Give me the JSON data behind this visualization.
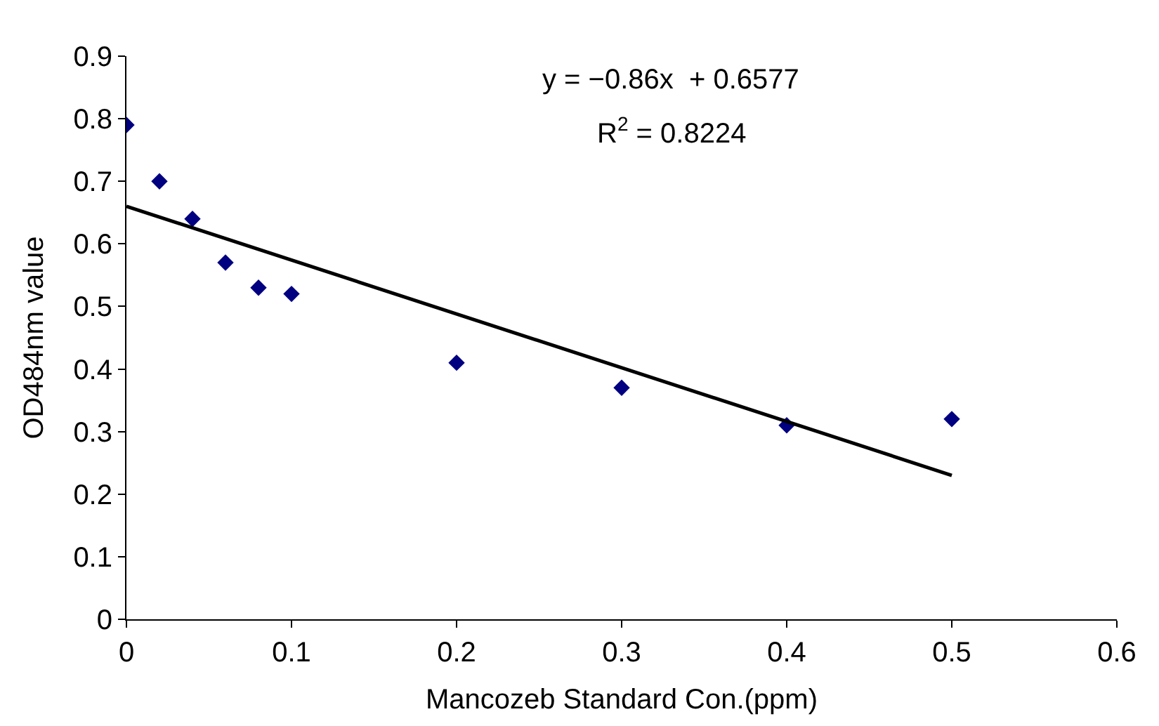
{
  "chart_data": {
    "type": "scatter",
    "xlabel": "Mancozeb Standard Con.(ppm)",
    "ylabel": "OD484nm value",
    "x": [
      0,
      0.02,
      0.04,
      0.06,
      0.08,
      0.1,
      0.2,
      0.3,
      0.4,
      0.5
    ],
    "series": [
      {
        "color": "#000080",
        "marker": "diamond",
        "values": [
          0.79,
          0.7,
          0.64,
          0.57,
          0.53,
          0.52,
          0.41,
          0.37,
          0.31,
          0.32
        ]
      },
      {
        "type": "line",
        "color": "#000000",
        "x": [
          0,
          0.5
        ],
        "values": [
          0.66,
          0.23
        ],
        "marker": "none",
        "line_style": "solid"
      }
    ],
    "annotations": [
      "y = −0.86x  + 0.6577",
      "R$^{2}$ = 0.8224"
    ],
    "xlim": [
      0,
      0.6
    ],
    "xticks": [
      0,
      0.1,
      0.2,
      0.3,
      0.4,
      0.5,
      0.6
    ],
    "ylim": [
      0,
      0.9
    ],
    "yticks": [
      0,
      0.1,
      0.2,
      0.3,
      0.4,
      0.5,
      0.6,
      0.7,
      0.8,
      0.9
    ]
  }
}
